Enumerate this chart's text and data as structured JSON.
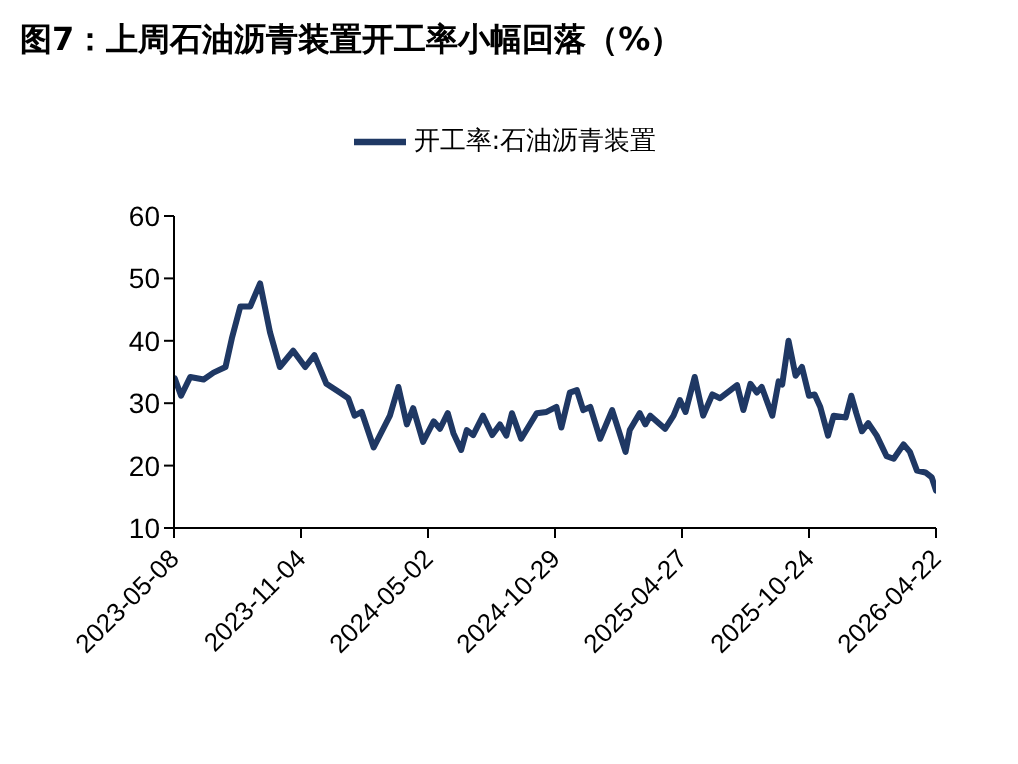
{
  "chart_data": {
    "type": "line",
    "title": "图7：上周石油沥青装置开工率小幅回落（%）",
    "x": [
      "2023-05-09",
      "2023-05-18",
      "2023-05-31",
      "2023-06-19",
      "2023-07-03",
      "2023-07-20",
      "2023-07-29",
      "2023-08-10",
      "2023-08-24",
      "2023-09-07",
      "2023-09-21",
      "2023-10-05",
      "2023-10-24",
      "2023-11-10",
      "2023-11-23",
      "2023-12-10",
      "2023-12-29",
      "2024-01-10",
      "2024-01-19",
      "2024-01-29",
      "2024-02-15",
      "2024-03-09",
      "2024-03-21",
      "2024-04-02",
      "2024-04-11",
      "2024-04-25",
      "2024-05-10",
      "2024-05-19",
      "2024-05-30",
      "2024-06-07",
      "2024-06-18",
      "2024-06-26",
      "2024-07-05",
      "2024-07-19",
      "2024-08-01",
      "2024-08-12",
      "2024-08-21",
      "2024-08-29",
      "2024-09-11",
      "2024-10-03",
      "2024-10-17",
      "2024-10-31",
      "2024-11-07",
      "2024-11-19",
      "2024-11-29",
      "2024-12-08",
      "2024-12-18",
      "2025-01-01",
      "2025-01-18",
      "2025-02-06",
      "2025-02-12",
      "2025-02-26",
      "2025-03-06",
      "2025-03-13",
      "2025-04-03",
      "2025-04-15",
      "2025-04-24",
      "2025-05-02",
      "2025-05-15",
      "2025-05-27",
      "2025-06-09",
      "2025-06-20",
      "2025-07-14",
      "2025-07-23",
      "2025-08-02",
      "2025-08-11",
      "2025-08-18",
      "2025-09-02",
      "2025-09-11",
      "2025-09-16",
      "2025-09-25",
      "2025-10-05",
      "2025-10-14",
      "2025-10-24",
      "2025-11-01",
      "2025-11-09",
      "2025-11-20",
      "2025-11-28",
      "2025-12-15",
      "2025-12-23",
      "2025-12-30",
      "2026-01-07",
      "2026-01-16",
      "2026-01-28",
      "2026-02-11",
      "2026-02-21",
      "2026-03-07",
      "2026-03-16",
      "2026-03-26",
      "2026-04-07",
      "2026-04-16",
      "2026-04-22"
    ],
    "series": [
      {
        "name": "开工率:石油沥青装置",
        "color": "#1f3864",
        "values": [
          34.0,
          31.2,
          34.2,
          33.8,
          34.9,
          35.8,
          40.4,
          45.5,
          45.5,
          49.2,
          41.4,
          35.8,
          38.4,
          35.8,
          37.7,
          33.1,
          31.7,
          30.8,
          28.0,
          28.6,
          22.9,
          28.0,
          32.6,
          26.6,
          29.2,
          23.8,
          27.1,
          25.9,
          28.4,
          25.2,
          22.5,
          25.7,
          24.9,
          28.0,
          24.9,
          26.6,
          24.8,
          28.4,
          24.3,
          28.4,
          28.6,
          29.4,
          26.1,
          31.7,
          32.1,
          28.9,
          29.4,
          24.3,
          28.9,
          22.2,
          25.7,
          28.4,
          26.6,
          28.0,
          25.9,
          28.0,
          30.5,
          28.6,
          34.2,
          28.0,
          31.4,
          30.8,
          32.9,
          28.9,
          33.1,
          31.7,
          32.6,
          28.0,
          33.5,
          33.0,
          40.0,
          34.4,
          35.8,
          31.2,
          31.4,
          29.4,
          24.8,
          28.0,
          27.7,
          31.2,
          28.4,
          25.5,
          26.8,
          24.8,
          21.5,
          21.1,
          23.4,
          22.2,
          19.2,
          18.9,
          18.1,
          16.0
        ]
      }
    ],
    "xlim": [
      "2023-05-08",
      "2026-04-22"
    ],
    "xticks": [
      "2023-05-08",
      "2023-11-04",
      "2024-05-02",
      "2024-10-29",
      "2025-04-27",
      "2025-10-24",
      "2026-04-22"
    ],
    "ylim": [
      10,
      60
    ],
    "yticks": [
      10,
      20,
      30,
      40,
      50,
      60
    ],
    "grid": false,
    "legend": "top",
    "marker": "none",
    "line_style": "solid"
  }
}
